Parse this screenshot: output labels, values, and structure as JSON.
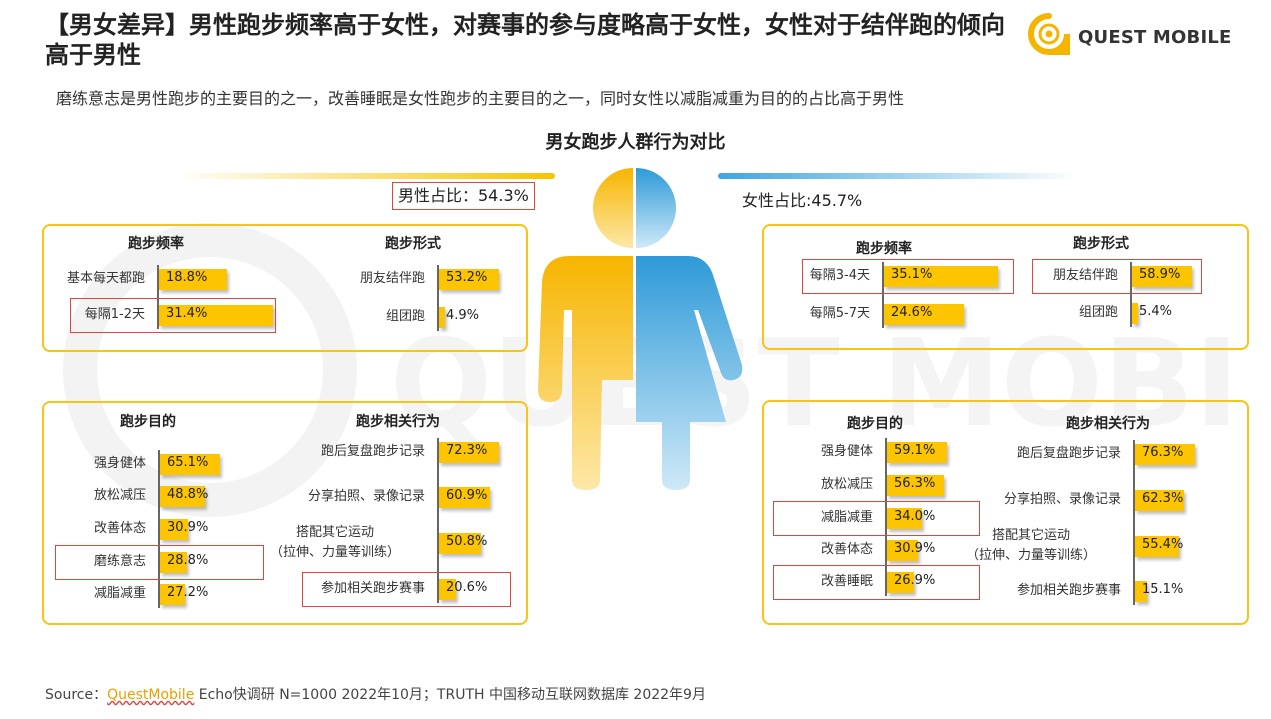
{
  "header": {
    "title": "【男女差异】男性跑步频率高于女性，对赛事的参与度略高于女性，女性对于结伴跑的倾向高于男性",
    "subtitle": "磨练意志是男性跑步的主要目的之一，改善睡眠是女性跑步的主要目的之一，同时女性以减脂减重为目的的占比高于男性",
    "logo_text": "QUEST MOBILE"
  },
  "center_title": "男女跑步人群行为对比",
  "male_share": "男性占比：54.3%",
  "female_share": "女性占比:45.7%",
  "watermark_text": "QUEST MOBILE",
  "colors": {
    "bar": "#fcc500",
    "panel_border": "#f5c518",
    "highlight": "#e0463c",
    "male": "#f7c400",
    "female": "#3fa6e0"
  },
  "source": {
    "prefix": "Source：",
    "brand": "QuestMobile",
    "rest": " Echo快调研 N=1000 2022年10月；TRUTH 中国移动互联网数据库 2022年9月"
  },
  "chart_data": [
    {
      "type": "bar",
      "group": "男性",
      "title": "跑步频率",
      "categories": [
        "基本每天都跑",
        "每隔1-2天"
      ],
      "values": [
        18.8,
        31.4
      ],
      "labels": [
        "18.8%",
        "31.4%"
      ],
      "highlight": [
        false,
        true
      ]
    },
    {
      "type": "bar",
      "group": "男性",
      "title": "跑步形式",
      "categories": [
        "朋友结伴跑",
        "组团跑"
      ],
      "values": [
        53.2,
        4.9
      ],
      "labels": [
        "53.2%",
        "4.9%"
      ],
      "highlight": [
        false,
        false
      ]
    },
    {
      "type": "bar",
      "group": "男性",
      "title": "跑步目的",
      "categories": [
        "强身健体",
        "放松减压",
        "改善体态",
        "磨练意志",
        "减脂减重"
      ],
      "values": [
        65.1,
        48.8,
        30.9,
        28.8,
        27.2
      ],
      "labels": [
        "65.1%",
        "48.8%",
        "30.9%",
        "28.8%",
        "27.2%"
      ],
      "highlight": [
        false,
        false,
        false,
        true,
        false
      ]
    },
    {
      "type": "bar",
      "group": "男性",
      "title": "跑步相关行为",
      "categories": [
        "跑后复盘跑步记录",
        "分享拍照、录像记录",
        "搭配其它运动\n（拉伸、力量等训练）",
        "参加相关跑步赛事"
      ],
      "values": [
        72.3,
        60.9,
        50.8,
        20.6
      ],
      "labels": [
        "72.3%",
        "60.9%",
        "50.8%",
        "20.6%"
      ],
      "highlight": [
        false,
        false,
        false,
        true
      ]
    },
    {
      "type": "bar",
      "group": "女性",
      "title": "跑步频率",
      "categories": [
        "每隔3-4天",
        "每隔5-7天"
      ],
      "values": [
        35.1,
        24.6
      ],
      "labels": [
        "35.1%",
        "24.6%"
      ],
      "highlight": [
        true,
        false
      ]
    },
    {
      "type": "bar",
      "group": "女性",
      "title": "跑步形式",
      "categories": [
        "朋友结伴跑",
        "组团跑"
      ],
      "values": [
        58.9,
        5.4
      ],
      "labels": [
        "58.9%",
        "5.4%"
      ],
      "highlight": [
        true,
        false
      ]
    },
    {
      "type": "bar",
      "group": "女性",
      "title": "跑步目的",
      "categories": [
        "强身健体",
        "放松减压",
        "减脂减重",
        "改善体态",
        "改善睡眠"
      ],
      "values": [
        59.1,
        56.3,
        34.0,
        30.9,
        26.9
      ],
      "labels": [
        "59.1%",
        "56.3%",
        "34.0%",
        "30.9%",
        "26.9%"
      ],
      "highlight": [
        false,
        false,
        true,
        false,
        true
      ]
    },
    {
      "type": "bar",
      "group": "女性",
      "title": "跑步相关行为",
      "categories": [
        "跑后复盘跑步记录",
        "分享拍照、录像记录",
        "搭配其它运动\n（拉伸、力量等训练）",
        "参加相关跑步赛事"
      ],
      "values": [
        76.3,
        62.3,
        55.4,
        15.1
      ],
      "labels": [
        "76.3%",
        "62.3%",
        "55.4%",
        "15.1%"
      ],
      "highlight": [
        false,
        false,
        false,
        false
      ]
    }
  ]
}
